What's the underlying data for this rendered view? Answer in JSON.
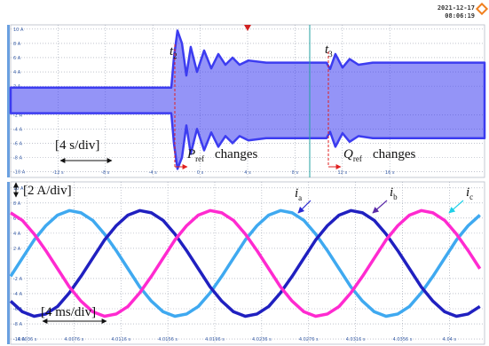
{
  "header": {
    "date": "2021-12-17",
    "time": "08:06:19"
  },
  "chart_data": [
    {
      "type": "band",
      "color": "#3c3cf0",
      "x": [
        -16,
        -2.44,
        -2.22,
        -1.92,
        -1.54,
        -1.17,
        -0.8,
        -0.27,
        0.33,
        0.93,
        1.53,
        2.13,
        2.73,
        3.32,
        4.07,
        5.57,
        10.66,
        10.96,
        11.41,
        12.01,
        12.61,
        13.36,
        14.56,
        24
      ],
      "upper": [
        1.8,
        1.8,
        6,
        9.8,
        8,
        3.5,
        7.5,
        4,
        7,
        4.5,
        6.5,
        5,
        6,
        5,
        5.6,
        5.3,
        5.3,
        4.4,
        6.5,
        4.6,
        5.8,
        5,
        5.3,
        5.3
      ],
      "lower": [
        -1.8,
        -1.8,
        -6,
        -9.6,
        -8,
        -3.5,
        -7.5,
        -4,
        -7,
        -4.5,
        -6.5,
        -5,
        -6,
        -5,
        -5.6,
        -5.3,
        -5.3,
        -4.4,
        -6.5,
        -4.6,
        -5.8,
        -5,
        -5.3,
        -5.3
      ],
      "xlim": [
        -16,
        24
      ],
      "ylim": [
        -10.8,
        10.6
      ],
      "xticks": [
        {
          "value": -12,
          "label": "-12 s"
        },
        {
          "value": -8,
          "label": "-8 s"
        },
        {
          "value": -4,
          "label": "-4 s"
        },
        {
          "value": 0,
          "label": "0 s"
        },
        {
          "value": 4,
          "label": "4 s"
        },
        {
          "value": 8,
          "label": "8 s"
        },
        {
          "value": 12,
          "label": "12 s"
        },
        {
          "value": 16,
          "label": "16 s"
        }
      ],
      "yticks": [
        {
          "value": 10,
          "label": "10 A"
        },
        {
          "value": 8,
          "label": "8 A"
        },
        {
          "value": 6,
          "label": "6 A"
        },
        {
          "value": 4,
          "label": "4 A"
        },
        {
          "value": 2,
          "label": "2 A"
        },
        {
          "value": -2,
          "label": "-2 A"
        },
        {
          "value": -4,
          "label": "-4 A"
        },
        {
          "value": -6,
          "label": "-6 A"
        },
        {
          "value": -8,
          "label": "-8 A"
        },
        {
          "value": -10,
          "label": "-10 A"
        }
      ],
      "grid": true,
      "annotations": [
        {
          "text": "[4 s/div]"
        },
        {
          "text": "t",
          "sub": "2"
        },
        {
          "text": "t",
          "sub": "3"
        },
        {
          "text": "P",
          "sub": "ref"
        },
        {
          "text": "changes"
        },
        {
          "text": "Q",
          "sub": "ref"
        },
        {
          "text": "changes"
        }
      ]
    },
    {
      "type": "line",
      "x": [
        4.0022,
        4.0032,
        4.0042,
        4.0052,
        4.0062,
        4.0072,
        4.0082,
        4.0092,
        4.0102,
        4.0112,
        4.0122,
        4.0132,
        4.0142,
        4.0152,
        4.0162,
        4.0172,
        4.0182,
        4.0192,
        4.0202,
        4.0212,
        4.0222,
        4.0232,
        4.0242,
        4.0252,
        4.0262,
        4.0272,
        4.0282,
        4.0292,
        4.0302,
        4.0312,
        4.0322,
        4.0332,
        4.0342,
        4.0352,
        4.0362,
        4.0372,
        4.0382,
        4.0392,
        4.0402,
        4.0412,
        4.0422
      ],
      "series": [
        {
          "name": "i",
          "sub": "a",
          "color": "#3fa9f0",
          "values": [
            -1.7,
            0.7,
            3.1,
            5,
            6.4,
            7,
            6.7,
            5.7,
            3.9,
            1.7,
            -0.7,
            -3.1,
            -5,
            -6.4,
            -7,
            -6.7,
            -5.7,
            -3.9,
            -1.7,
            0.7,
            3.1,
            5,
            6.4,
            7,
            6.7,
            5.7,
            3.9,
            1.7,
            -0.7,
            -3.1,
            -5,
            -6.4,
            -7,
            -6.7,
            -5.7,
            -3.9,
            -1.7,
            0.7,
            3.1,
            5,
            6.4
          ]
        },
        {
          "name": "i",
          "sub": "b",
          "color": "#2020c0",
          "values": [
            -5,
            -6.4,
            -7,
            -6.7,
            -5.7,
            -3.9,
            -1.7,
            0.7,
            3.1,
            5,
            6.4,
            7,
            6.7,
            5.7,
            3.9,
            1.7,
            -0.7,
            -3.1,
            -5,
            -6.4,
            -7,
            -6.7,
            -5.7,
            -3.9,
            -1.7,
            0.7,
            3.1,
            5,
            6.4,
            7,
            6.7,
            5.7,
            3.9,
            1.7,
            -0.7,
            -3.1,
            -5,
            -6.4,
            -7,
            -6.7,
            -5.7
          ]
        },
        {
          "name": "i",
          "sub": "c",
          "color": "#ff2ad0",
          "values": [
            6.7,
            5.7,
            3.9,
            1.7,
            -0.7,
            -3.1,
            -5,
            -6.4,
            -7,
            -6.7,
            -5.7,
            -3.9,
            -1.7,
            0.7,
            3.1,
            5,
            6.4,
            7,
            6.7,
            5.7,
            3.9,
            1.7,
            -0.7,
            -3.1,
            -5,
            -6.4,
            -7,
            -6.7,
            -5.7,
            -3.9,
            -1.7,
            0.7,
            3.1,
            5,
            6.4,
            7,
            6.7,
            5.7,
            3.9,
            1.7,
            -0.7
          ]
        }
      ],
      "xlim": [
        4.0022,
        4.0426
      ],
      "ylim": [
        -10.7,
        10.8
      ],
      "xticks": [
        {
          "value": 4.0036,
          "label": "4.0036 s"
        },
        {
          "value": 4.0076,
          "label": "4.0076 s"
        },
        {
          "value": 4.0116,
          "label": "4.0116 s"
        },
        {
          "value": 4.0156,
          "label": "4.0156 s"
        },
        {
          "value": 4.0196,
          "label": "4.0196 s"
        },
        {
          "value": 4.0236,
          "label": "4.0236 s"
        },
        {
          "value": 4.0276,
          "label": "4.0276 s"
        },
        {
          "value": 4.0316,
          "label": "4.0316 s"
        },
        {
          "value": 4.0356,
          "label": "4.0356 s"
        },
        {
          "value": 4.0396,
          "label": "4.04 s"
        }
      ],
      "yticks": [
        {
          "value": 10,
          "label": "10 A"
        },
        {
          "value": 8,
          "label": "8 A"
        },
        {
          "value": 6,
          "label": "6 A"
        },
        {
          "value": 4,
          "label": "4 A"
        },
        {
          "value": 2,
          "label": "2 A"
        },
        {
          "value": -2,
          "label": "-2 A"
        },
        {
          "value": -4,
          "label": "-4 A"
        },
        {
          "value": -6,
          "label": "-6 A"
        },
        {
          "value": -8,
          "label": "-8 A"
        },
        {
          "value": -10,
          "label": "-10 A"
        }
      ],
      "grid": true,
      "annotations": [
        {
          "text": "[2 A/div]"
        },
        {
          "text": "[4 ms/div]"
        }
      ]
    }
  ]
}
